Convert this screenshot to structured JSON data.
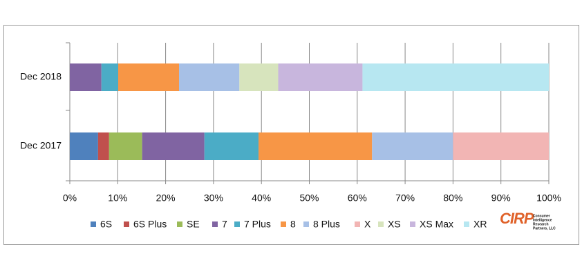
{
  "chart_data": {
    "type": "stacked-barh",
    "categories": [
      "Dec 2018",
      "Dec 2017"
    ],
    "series": [
      {
        "name": "6S",
        "color": "#4f81bd",
        "values": [
          0,
          5.9
        ]
      },
      {
        "name": "6S Plus",
        "color": "#c0504d",
        "values": [
          0,
          2.3
        ]
      },
      {
        "name": "SE",
        "color": "#9bbb59",
        "values": [
          0,
          6.9
        ]
      },
      {
        "name": "7",
        "color": "#8064a2",
        "values": [
          6.6,
          13.0
        ]
      },
      {
        "name": "7 Plus",
        "color": "#4bacc6",
        "values": [
          3.5,
          11.3
        ]
      },
      {
        "name": "8",
        "color": "#f79646",
        "values": [
          12.7,
          23.7
        ]
      },
      {
        "name": "8 Plus",
        "color": "#a7c0e6",
        "values": [
          12.6,
          16.9
        ]
      },
      {
        "name": "X",
        "color": "#f2b5b4",
        "values": [
          0,
          20.0
        ]
      },
      {
        "name": "XS",
        "color": "#d7e4bd",
        "values": [
          8.1,
          0
        ]
      },
      {
        "name": "XS Max",
        "color": "#c8b6dd",
        "values": [
          17.6,
          0
        ]
      },
      {
        "name": "XR",
        "color": "#b7e7f1",
        "values": [
          38.9,
          0
        ]
      }
    ],
    "xlim": [
      0,
      100
    ],
    "xticks": [
      {
        "value": 0,
        "label": "0%"
      },
      {
        "value": 10,
        "label": "10%"
      },
      {
        "value": 20,
        "label": "20%"
      },
      {
        "value": 30,
        "label": "30%"
      },
      {
        "value": 40,
        "label": "40%"
      },
      {
        "value": 50,
        "label": "50%"
      },
      {
        "value": 60,
        "label": "60%"
      },
      {
        "value": 70,
        "label": "70%"
      },
      {
        "value": 80,
        "label": "80%"
      },
      {
        "value": 90,
        "label": "90%"
      },
      {
        "value": 100,
        "label": "100%"
      }
    ],
    "grid": true,
    "logo": {
      "name": "CIRP",
      "caption": [
        "Consumer",
        "Intelligence",
        "Research",
        "Partners, LLC"
      ]
    }
  }
}
